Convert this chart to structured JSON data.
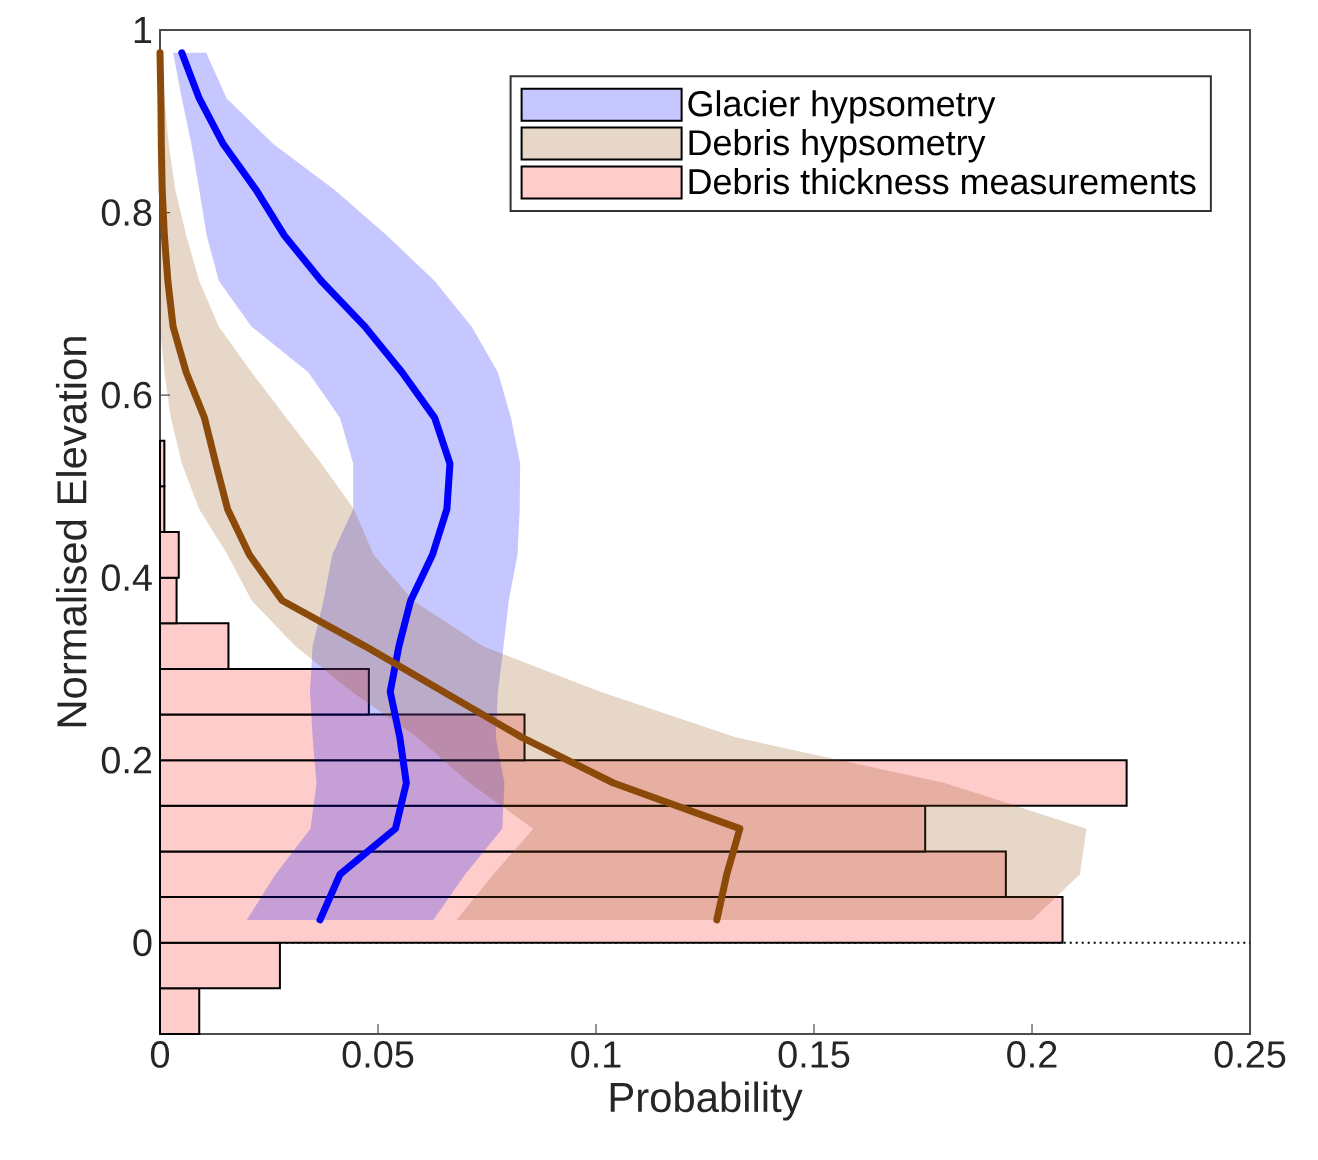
{
  "chart_data": {
    "type": "line",
    "orientation": "horizontal",
    "xlabel": "Probability",
    "ylabel": "Normalised Elevation",
    "xlim": [
      0,
      0.25
    ],
    "xticks": [
      0,
      0.05,
      0.1,
      0.15,
      0.2,
      0.25
    ],
    "ylim": [
      -0.1,
      1
    ],
    "yticks": [
      0,
      0.2,
      0.4,
      0.6,
      0.8,
      1
    ],
    "legend": "top right",
    "marker": "none",
    "line_style": "solid",
    "ref_lines": [
      {
        "axis": "y",
        "value": 0,
        "color": "#000000",
        "line_style": "dotted"
      }
    ],
    "x": [
      0.025,
      0.075,
      0.125,
      0.175,
      0.225,
      0.275,
      0.325,
      0.375,
      0.425,
      0.475,
      0.525,
      0.575,
      0.625,
      0.675,
      0.725,
      0.775,
      0.825,
      0.875,
      0.925,
      0.975
    ],
    "series": [
      {
        "name": "Glacier hypsometry",
        "color": "#0000ff",
        "values": [
          0.0367,
          0.0413,
          0.054,
          0.0565,
          0.055,
          0.0528,
          0.0548,
          0.0575,
          0.0625,
          0.0658,
          0.0665,
          0.063,
          0.0555,
          0.047,
          0.037,
          0.0285,
          0.022,
          0.0145,
          0.009,
          0.005
        ],
        "lower": [
          0.0199,
          0.0265,
          0.0345,
          0.0359,
          0.035,
          0.0344,
          0.035,
          0.0375,
          0.0395,
          0.0443,
          0.0443,
          0.0413,
          0.034,
          0.021,
          0.0135,
          0.0107,
          0.009,
          0.0072,
          0.005,
          0.003
        ],
        "upper": [
          0.0627,
          0.07,
          0.0785,
          0.079,
          0.077,
          0.0775,
          0.0788,
          0.08,
          0.082,
          0.0825,
          0.0826,
          0.0805,
          0.0775,
          0.0715,
          0.063,
          0.052,
          0.04,
          0.026,
          0.0153,
          0.0106
        ]
      },
      {
        "name": "Debris hypsometry",
        "color": "#8b4a0a",
        "values": [
          0.1277,
          0.13,
          0.133,
          0.104,
          0.083,
          0.065,
          0.047,
          0.028,
          0.0205,
          0.0155,
          0.0128,
          0.0102,
          0.006,
          0.003,
          0.0018,
          0.001,
          0.0005,
          0.0003,
          0.0002,
          0
        ],
        "lower": [
          0.068,
          0.0765,
          0.0856,
          0.071,
          0.059,
          0.044,
          0.031,
          0.021,
          0.0155,
          0.009,
          0.005,
          0.0025,
          0.001,
          0,
          0,
          0,
          0,
          0,
          0,
          0
        ],
        "upper": [
          0.2,
          0.211,
          0.2125,
          0.18,
          0.132,
          0.101,
          0.074,
          0.058,
          0.049,
          0.0445,
          0.037,
          0.029,
          0.021,
          0.0135,
          0.009,
          0.006,
          0.0035,
          0.002,
          0.001,
          0.0004
        ]
      },
      {
        "name": "Debris thickness measurements",
        "type": "histogram",
        "color": "#ffcccc",
        "bins": [
          -0.1,
          -0.05,
          0,
          0.05,
          0.1,
          0.15,
          0.2,
          0.25,
          0.3,
          0.35,
          0.4,
          0.45,
          0.5,
          0.55
        ],
        "values": [
          0.009,
          0.0275,
          0.207,
          0.194,
          0.1755,
          0.2217,
          0.0836,
          0.0479,
          0.0157,
          0.0038,
          0.0043,
          0.001,
          0.001
        ]
      }
    ]
  }
}
